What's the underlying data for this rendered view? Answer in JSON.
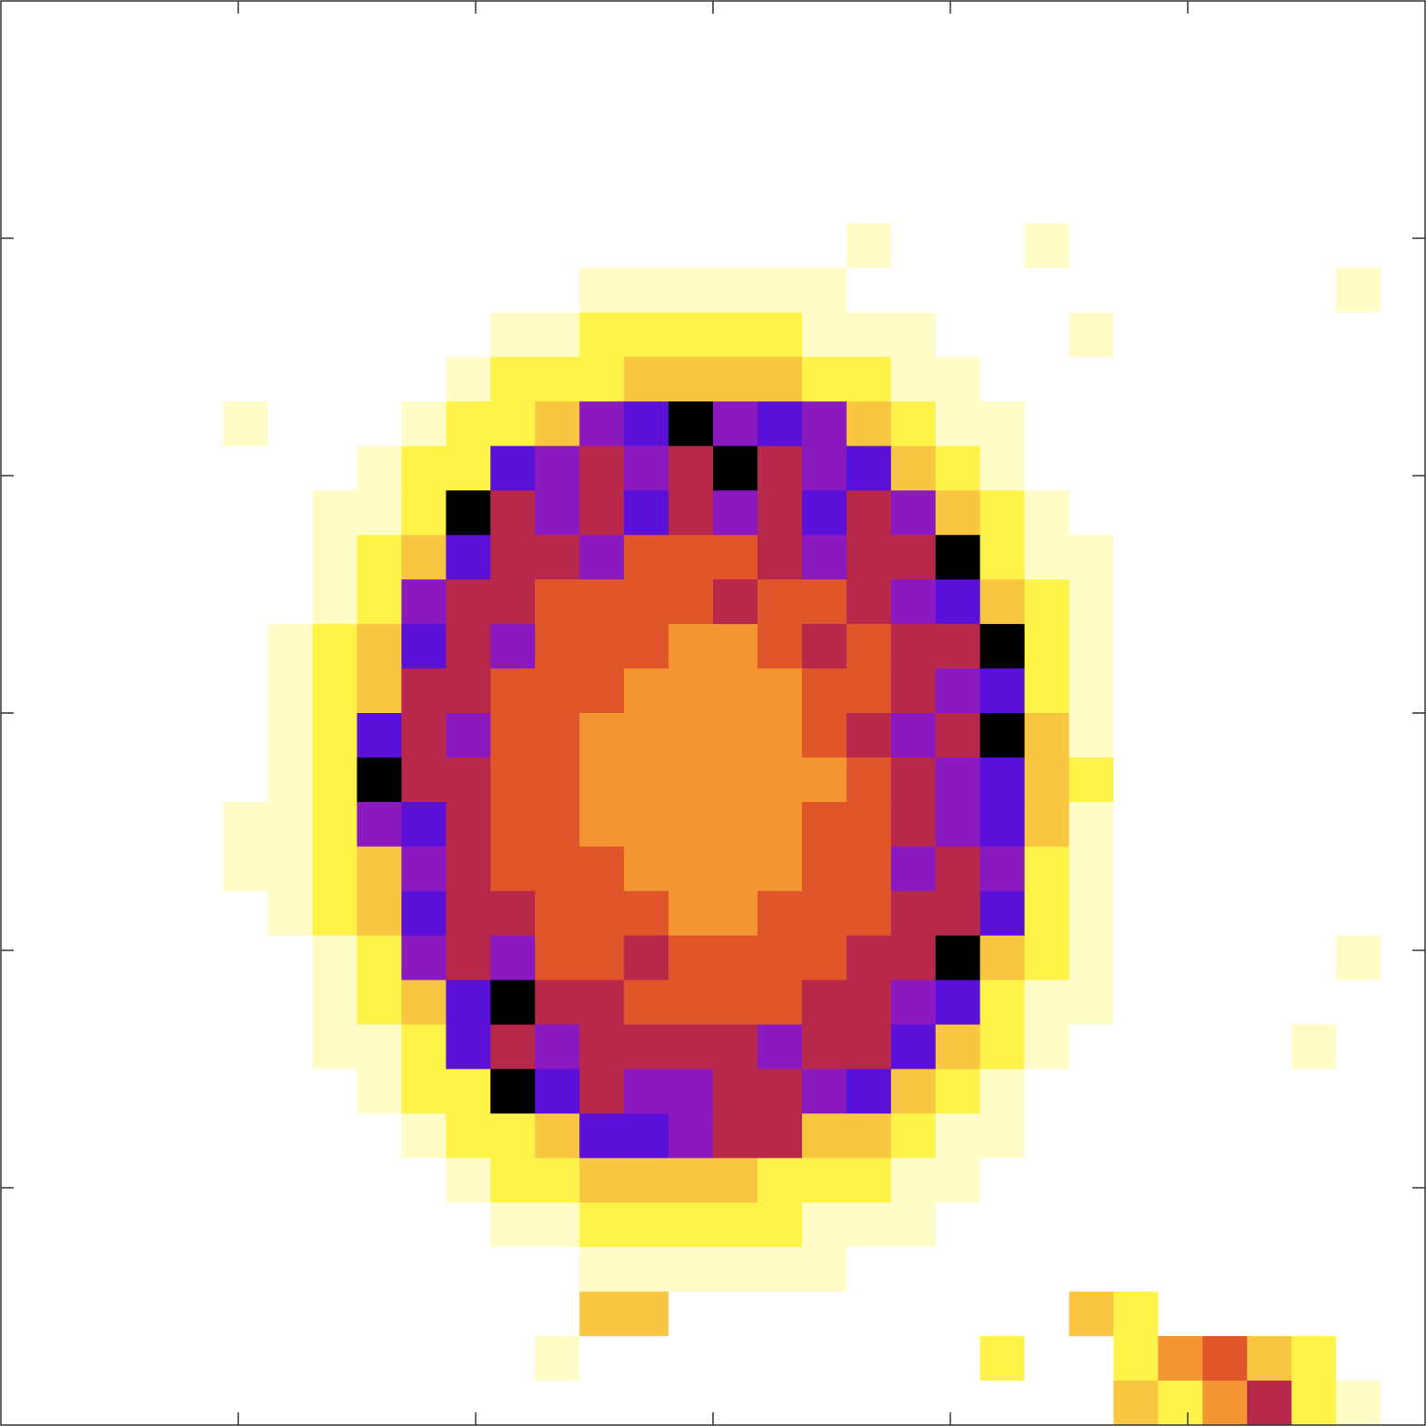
{
  "chart_data": {
    "type": "heatmap",
    "xlim": [
      0,
      6
    ],
    "ylim": [
      0,
      6
    ],
    "xticks": [
      1,
      2,
      3,
      4,
      5
    ],
    "yticks": [
      1,
      2,
      3,
      4,
      5
    ],
    "colors": [
      "#ffffff",
      "#fffcc8",
      "#fff34a",
      "#f8c640",
      "#f39530",
      "#e0552a",
      "#b8284a",
      "#8a1ac0",
      "#5a10d8",
      "#000000"
    ],
    "z": [
      [
        0,
        0,
        0,
        0,
        0,
        0,
        0,
        0,
        0,
        0,
        0,
        0,
        0,
        0,
        0,
        0,
        0,
        0,
        0,
        0,
        0,
        0,
        0,
        0,
        0,
        0,
        0,
        0,
        0,
        0,
        0,
        0
      ],
      [
        0,
        0,
        0,
        0,
        0,
        0,
        0,
        0,
        0,
        0,
        0,
        0,
        0,
        0,
        0,
        0,
        0,
        0,
        0,
        0,
        0,
        0,
        0,
        0,
        0,
        0,
        0,
        0,
        0,
        0,
        0,
        0
      ],
      [
        0,
        0,
        0,
        0,
        0,
        0,
        0,
        0,
        0,
        0,
        0,
        0,
        0,
        0,
        0,
        0,
        0,
        0,
        0,
        0,
        0,
        0,
        0,
        0,
        0,
        0,
        0,
        0,
        0,
        0,
        0,
        0
      ],
      [
        0,
        0,
        0,
        0,
        0,
        0,
        0,
        0,
        0,
        0,
        0,
        0,
        0,
        0,
        0,
        0,
        0,
        0,
        0,
        0,
        0,
        0,
        0,
        0,
        0,
        0,
        0,
        0,
        0,
        0,
        0,
        0
      ],
      [
        0,
        0,
        0,
        0,
        0,
        0,
        0,
        0,
        0,
        0,
        0,
        0,
        0,
        0,
        0,
        0,
        0,
        0,
        0,
        0,
        0,
        0,
        0,
        0,
        0,
        0,
        0,
        0,
        0,
        0,
        0,
        0
      ],
      [
        0,
        0,
        0,
        0,
        0,
        0,
        0,
        0,
        0,
        0,
        0,
        0,
        0,
        0,
        0,
        0,
        0,
        0,
        0,
        1,
        0,
        0,
        0,
        1,
        0,
        0,
        0,
        0,
        0,
        0,
        0,
        0
      ],
      [
        0,
        0,
        0,
        0,
        0,
        0,
        0,
        0,
        0,
        0,
        0,
        0,
        0,
        1,
        1,
        1,
        1,
        1,
        1,
        0,
        0,
        0,
        0,
        0,
        0,
        0,
        0,
        0,
        0,
        0,
        1,
        0
      ],
      [
        0,
        0,
        0,
        0,
        0,
        0,
        0,
        0,
        0,
        0,
        0,
        1,
        1,
        2,
        2,
        2,
        2,
        2,
        1,
        1,
        1,
        0,
        0,
        0,
        1,
        0,
        0,
        0,
        0,
        0,
        0,
        0
      ],
      [
        0,
        0,
        0,
        0,
        0,
        0,
        0,
        0,
        0,
        0,
        1,
        2,
        2,
        2,
        3,
        3,
        3,
        3,
        2,
        2,
        1,
        1,
        0,
        0,
        0,
        0,
        0,
        0,
        0,
        0,
        0,
        0
      ],
      [
        0,
        0,
        0,
        0,
        0,
        1,
        0,
        0,
        0,
        1,
        2,
        2,
        3,
        7,
        8,
        9,
        7,
        8,
        7,
        3,
        2,
        1,
        1,
        0,
        0,
        0,
        0,
        0,
        0,
        0,
        0,
        0
      ],
      [
        0,
        0,
        0,
        0,
        0,
        0,
        0,
        0,
        1,
        2,
        2,
        8,
        7,
        6,
        7,
        6,
        9,
        6,
        7,
        8,
        3,
        2,
        1,
        0,
        0,
        0,
        0,
        0,
        0,
        0,
        0,
        0
      ],
      [
        0,
        0,
        0,
        0,
        0,
        0,
        0,
        1,
        1,
        2,
        9,
        6,
        7,
        6,
        8,
        6,
        7,
        6,
        8,
        6,
        7,
        3,
        2,
        1,
        0,
        0,
        0,
        0,
        0,
        0,
        0,
        0
      ],
      [
        0,
        0,
        0,
        0,
        0,
        0,
        0,
        1,
        2,
        3,
        8,
        6,
        6,
        7,
        5,
        5,
        5,
        6,
        7,
        6,
        6,
        9,
        2,
        1,
        1,
        0,
        0,
        0,
        0,
        0,
        0,
        0
      ],
      [
        0,
        0,
        0,
        0,
        0,
        0,
        0,
        1,
        2,
        7,
        6,
        6,
        5,
        5,
        5,
        5,
        6,
        5,
        5,
        6,
        7,
        8,
        3,
        2,
        1,
        0,
        0,
        0,
        0,
        0,
        0,
        0
      ],
      [
        0,
        0,
        0,
        0,
        0,
        0,
        1,
        2,
        3,
        8,
        6,
        7,
        5,
        5,
        5,
        4,
        4,
        5,
        6,
        5,
        6,
        6,
        9,
        2,
        1,
        0,
        0,
        0,
        0,
        0,
        0,
        0
      ],
      [
        0,
        0,
        0,
        0,
        0,
        0,
        1,
        2,
        3,
        6,
        6,
        5,
        5,
        5,
        4,
        4,
        4,
        4,
        5,
        5,
        6,
        7,
        8,
        2,
        1,
        0,
        0,
        0,
        0,
        0,
        0,
        0
      ],
      [
        0,
        0,
        0,
        0,
        0,
        0,
        1,
        2,
        8,
        6,
        7,
        5,
        5,
        4,
        4,
        4,
        4,
        4,
        5,
        6,
        7,
        6,
        9,
        3,
        1,
        0,
        0,
        0,
        0,
        0,
        0,
        0
      ],
      [
        0,
        0,
        0,
        0,
        0,
        0,
        1,
        2,
        9,
        6,
        6,
        5,
        5,
        4,
        4,
        4,
        4,
        4,
        4,
        5,
        6,
        7,
        8,
        3,
        2,
        0,
        0,
        0,
        0,
        0,
        0,
        0
      ],
      [
        0,
        0,
        0,
        0,
        0,
        1,
        1,
        2,
        7,
        8,
        6,
        5,
        5,
        4,
        4,
        4,
        4,
        4,
        5,
        5,
        6,
        7,
        8,
        3,
        1,
        0,
        0,
        0,
        0,
        0,
        0,
        0
      ],
      [
        0,
        0,
        0,
        0,
        0,
        1,
        1,
        2,
        3,
        7,
        6,
        5,
        5,
        5,
        4,
        4,
        4,
        4,
        5,
        5,
        7,
        6,
        7,
        2,
        1,
        0,
        0,
        0,
        0,
        0,
        0,
        0
      ],
      [
        0,
        0,
        0,
        0,
        0,
        0,
        1,
        2,
        3,
        8,
        6,
        6,
        5,
        5,
        5,
        4,
        4,
        5,
        5,
        5,
        6,
        6,
        8,
        2,
        1,
        0,
        0,
        0,
        0,
        0,
        0,
        0
      ],
      [
        0,
        0,
        0,
        0,
        0,
        0,
        0,
        1,
        2,
        7,
        6,
        7,
        5,
        5,
        6,
        5,
        5,
        5,
        5,
        6,
        6,
        9,
        3,
        2,
        1,
        0,
        0,
        0,
        0,
        0,
        1,
        0
      ],
      [
        0,
        0,
        0,
        0,
        0,
        0,
        0,
        1,
        2,
        3,
        8,
        9,
        6,
        6,
        5,
        5,
        5,
        5,
        6,
        6,
        7,
        8,
        2,
        1,
        1,
        0,
        0,
        0,
        0,
        0,
        0,
        0
      ],
      [
        0,
        0,
        0,
        0,
        0,
        0,
        0,
        1,
        1,
        2,
        8,
        6,
        7,
        6,
        6,
        6,
        6,
        7,
        6,
        6,
        8,
        3,
        2,
        1,
        0,
        0,
        0,
        0,
        0,
        1,
        0,
        0
      ],
      [
        0,
        0,
        0,
        0,
        0,
        0,
        0,
        0,
        1,
        2,
        2,
        9,
        8,
        6,
        7,
        7,
        6,
        6,
        7,
        8,
        3,
        2,
        1,
        0,
        0,
        0,
        0,
        0,
        0,
        0,
        0,
        0
      ],
      [
        0,
        0,
        0,
        0,
        0,
        0,
        0,
        0,
        0,
        1,
        2,
        2,
        3,
        8,
        8,
        7,
        6,
        6,
        3,
        3,
        2,
        1,
        1,
        0,
        0,
        0,
        0,
        0,
        0,
        0,
        0,
        0
      ],
      [
        0,
        0,
        0,
        0,
        0,
        0,
        0,
        0,
        0,
        0,
        1,
        2,
        2,
        3,
        3,
        3,
        3,
        2,
        2,
        2,
        1,
        1,
        0,
        0,
        0,
        0,
        0,
        0,
        0,
        0,
        0,
        0
      ],
      [
        0,
        0,
        0,
        0,
        0,
        0,
        0,
        0,
        0,
        0,
        0,
        1,
        1,
        2,
        2,
        2,
        2,
        2,
        1,
        1,
        1,
        0,
        0,
        0,
        0,
        0,
        0,
        0,
        0,
        0,
        0,
        0
      ],
      [
        0,
        0,
        0,
        0,
        0,
        0,
        0,
        0,
        0,
        0,
        0,
        0,
        0,
        1,
        1,
        1,
        1,
        1,
        1,
        0,
        0,
        0,
        0,
        0,
        0,
        0,
        0,
        0,
        0,
        0,
        0,
        0
      ],
      [
        0,
        0,
        0,
        0,
        0,
        0,
        0,
        0,
        0,
        0,
        0,
        0,
        0,
        3,
        3,
        0,
        0,
        0,
        0,
        0,
        0,
        0,
        0,
        0,
        3,
        2,
        0,
        0,
        0,
        0,
        0,
        0
      ],
      [
        0,
        0,
        0,
        0,
        0,
        0,
        0,
        0,
        0,
        0,
        0,
        0,
        1,
        0,
        0,
        0,
        0,
        0,
        0,
        0,
        0,
        0,
        2,
        0,
        0,
        2,
        4,
        5,
        3,
        2,
        0,
        0
      ],
      [
        0,
        0,
        0,
        0,
        0,
        0,
        0,
        0,
        0,
        0,
        0,
        0,
        0,
        0,
        0,
        0,
        0,
        0,
        0,
        0,
        0,
        0,
        0,
        0,
        0,
        3,
        2,
        4,
        6,
        2,
        1,
        0
      ]
    ]
  }
}
